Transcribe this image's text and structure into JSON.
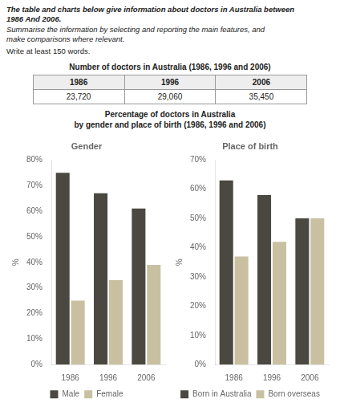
{
  "title": [
    "The table and charts below give information about doctors in Australia between",
    "1986 And 2006."
  ],
  "subtitle": [
    "Summarise the information by selecting and reporting the main features, and",
    "make comparisons where relevant."
  ],
  "annotations": [
    "Write at least 150 words."
  ],
  "table": {
    "title": "Number of doctors in Australia (1986, 1996 and 2006)",
    "categories": [
      "1986",
      "1996",
      "2006"
    ],
    "values": [
      {
        "value": 23720,
        "label": "23,720"
      },
      {
        "value": 29060,
        "label": "29,060"
      },
      {
        "value": 35450,
        "label": "35,450"
      }
    ]
  },
  "charts_title": [
    "Percentage of doctors in Australia",
    "by gender and place of birth (1986, 1996 and 2006)"
  ],
  "chart_data": [
    {
      "type": "bar",
      "title": "Gender",
      "categories": [
        "1986",
        "1996",
        "2006"
      ],
      "series": [
        {
          "name": "Male",
          "color": "#4a4840",
          "values": [
            75,
            67,
            61
          ]
        },
        {
          "name": "Female",
          "color": "#c8c0a0",
          "values": [
            25,
            33,
            39
          ]
        }
      ],
      "ylabel": "%",
      "ylim": [
        0,
        80
      ],
      "yticks": [
        {
          "value": 0,
          "label": "0%"
        },
        {
          "value": 10,
          "label": "10%"
        },
        {
          "value": 20,
          "label": "20%"
        },
        {
          "value": 30,
          "label": "30%"
        },
        {
          "value": 40,
          "label": "40%"
        },
        {
          "value": 50,
          "label": "50%"
        },
        {
          "value": 60,
          "label": "60%"
        },
        {
          "value": 70,
          "label": "70%"
        },
        {
          "value": 80,
          "label": "80%"
        }
      ],
      "grid": false,
      "legend": "bottom"
    },
    {
      "type": "bar",
      "title": "Place of birth",
      "categories": [
        "1986",
        "1996",
        "2006"
      ],
      "series": [
        {
          "name": "Born in Australia",
          "color": "#4a4840",
          "values": [
            63,
            58,
            50
          ]
        },
        {
          "name": "Born overseas",
          "color": "#c8c0a0",
          "values": [
            37,
            42,
            50
          ]
        }
      ],
      "ylabel": "%",
      "ylim": [
        0,
        70
      ],
      "yticks": [
        {
          "value": 0,
          "label": "0%"
        },
        {
          "value": 10,
          "label": "10%"
        },
        {
          "value": 20,
          "label": "20%"
        },
        {
          "value": 30,
          "label": "30%"
        },
        {
          "value": 40,
          "label": "40%"
        },
        {
          "value": 50,
          "label": "50%"
        },
        {
          "value": 60,
          "label": "60%"
        },
        {
          "value": 70,
          "label": "70%"
        }
      ],
      "grid": false,
      "legend": "bottom"
    }
  ]
}
